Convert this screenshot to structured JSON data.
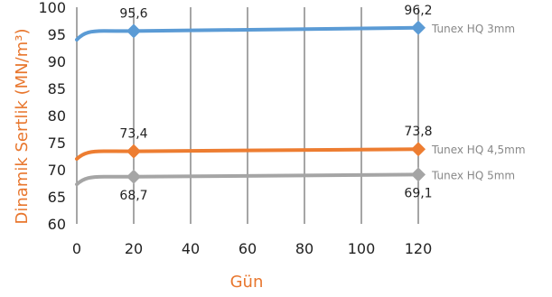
{
  "chart_data": {
    "type": "line",
    "title": "",
    "xlabel": "Gün",
    "ylabel": "Dinamik Sertlik (MN/m³)",
    "xlim": [
      0,
      120
    ],
    "ylim": [
      60,
      100
    ],
    "x_ticks": [
      "0",
      "20",
      "40",
      "60",
      "80",
      "100",
      "120"
    ],
    "y_ticks": [
      "60",
      "65",
      "70",
      "75",
      "80",
      "85",
      "90",
      "95",
      "100"
    ],
    "grid": "vertical lines only",
    "legend": "right end of each line",
    "colors": {
      "axis_title": "#e8762d",
      "grid": "#6a6a6a",
      "legend_text": "#888888"
    },
    "series": [
      {
        "name": "Tunex HQ 3mm",
        "color": "#5b9bd5",
        "x": [
          0,
          20,
          120
        ],
        "y": [
          94.0,
          95.6,
          96.2
        ],
        "labels": [
          {
            "index": 1,
            "text": "95,6"
          },
          {
            "index": 2,
            "text": "96,2"
          }
        ]
      },
      {
        "name": "Tunex HQ 4,5mm",
        "color": "#ed7d31",
        "x": [
          0,
          20,
          120
        ],
        "y": [
          72.0,
          73.4,
          73.8
        ],
        "labels": [
          {
            "index": 1,
            "text": "73,4"
          },
          {
            "index": 2,
            "text": "73,8"
          }
        ]
      },
      {
        "name": "Tunex HQ 5mm",
        "color": "#a5a5a5",
        "x": [
          0,
          20,
          120
        ],
        "y": [
          67.3,
          68.7,
          69.1
        ],
        "labels": [
          {
            "index": 1,
            "text": "68,7"
          },
          {
            "index": 2,
            "text": "69,1"
          }
        ]
      }
    ]
  }
}
